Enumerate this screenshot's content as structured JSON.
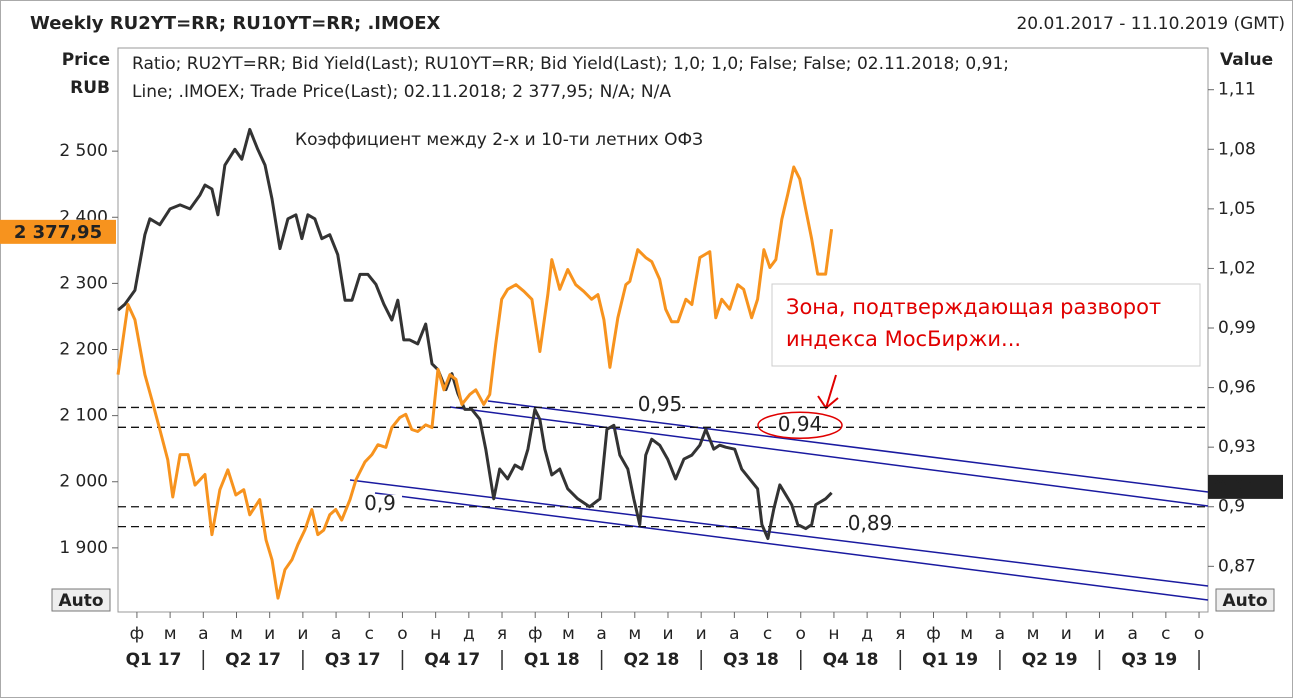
{
  "chart_data": {
    "type": "line",
    "title": "Weekly RU2YT=RR; RU10YT=RR; .IMOEX",
    "date_range": "20.01.2017 - 11.10.2019 (GMT)",
    "y_label": [
      "Price",
      "RUB"
    ],
    "y2_label": "Value",
    "annotation": "Коэффициент между 2-х и 10-ти летних ОФЗ",
    "note": [
      "Зона, подтверждающая разворот",
      "индекса МосБиржи..."
    ],
    "legend_suffix": "N/A; N/A",
    "auto_buttons": [
      "Auto",
      "Auto"
    ],
    "xlim": [
      0.43,
      33.27
    ],
    "xticks": [
      {
        "value": 1,
        "label": "ф"
      },
      {
        "value": 2,
        "label": "м"
      },
      {
        "value": 3,
        "label": "а"
      },
      {
        "value": 4,
        "label": "м"
      },
      {
        "value": 5,
        "label": "и"
      },
      {
        "value": 6,
        "label": "и"
      },
      {
        "value": 7,
        "label": "а"
      },
      {
        "value": 8,
        "label": "с"
      },
      {
        "value": 9,
        "label": "о"
      },
      {
        "value": 10,
        "label": "н"
      },
      {
        "value": 11,
        "label": "д"
      },
      {
        "value": 12,
        "label": "я"
      },
      {
        "value": 13,
        "label": "ф"
      },
      {
        "value": 14,
        "label": "м"
      },
      {
        "value": 15,
        "label": "а"
      },
      {
        "value": 16,
        "label": "м"
      },
      {
        "value": 17,
        "label": "и"
      },
      {
        "value": 18,
        "label": "и"
      },
      {
        "value": 19,
        "label": "а"
      },
      {
        "value": 20,
        "label": "с"
      },
      {
        "value": 21,
        "label": "о"
      },
      {
        "value": 22,
        "label": "н"
      },
      {
        "value": 23,
        "label": "д"
      },
      {
        "value": 24,
        "label": "я"
      },
      {
        "value": 25,
        "label": "ф"
      },
      {
        "value": 26,
        "label": "м"
      },
      {
        "value": 27,
        "label": "а"
      },
      {
        "value": 28,
        "label": "м"
      },
      {
        "value": 29,
        "label": "и"
      },
      {
        "value": 30,
        "label": "и"
      },
      {
        "value": 31,
        "label": "а"
      },
      {
        "value": 32,
        "label": "с"
      },
      {
        "value": 33,
        "label": "о"
      }
    ],
    "quarter_ticks": [
      {
        "value": 1.5,
        "label": "Q1 17"
      },
      {
        "value": 4.5,
        "label": "Q2 17"
      },
      {
        "value": 7.5,
        "label": "Q3 17"
      },
      {
        "value": 10.5,
        "label": "Q4 17"
      },
      {
        "value": 13.5,
        "label": "Q1 18"
      },
      {
        "value": 16.5,
        "label": "Q2 18"
      },
      {
        "value": 19.5,
        "label": "Q3 18"
      },
      {
        "value": 22.5,
        "label": "Q4 18"
      },
      {
        "value": 25.5,
        "label": "Q1 19"
      },
      {
        "value": 28.5,
        "label": "Q2 19"
      },
      {
        "value": 31.5,
        "label": "Q3 19"
      }
    ],
    "ylim": [
      1803,
      2656
    ],
    "yticks": [
      {
        "value": 1900,
        "label": "1 900"
      },
      {
        "value": 2000,
        "label": "2 000"
      },
      {
        "value": 2100,
        "label": "2 100"
      },
      {
        "value": 2200,
        "label": "2 200"
      },
      {
        "value": 2300,
        "label": "2 300"
      },
      {
        "value": 2400,
        "label": "2 400"
      },
      {
        "value": 2500,
        "label": "2 500"
      }
    ],
    "y2lim": [
      0.847,
      1.131
    ],
    "y2ticks": [
      {
        "value": 0.87,
        "label": "0,87"
      },
      {
        "value": 0.9,
        "label": "0,9"
      },
      {
        "value": 0.93,
        "label": "0,93"
      },
      {
        "value": 0.96,
        "label": "0,96"
      },
      {
        "value": 0.99,
        "label": "0,99"
      },
      {
        "value": 1.02,
        "label": "1,02"
      },
      {
        "value": 1.05,
        "label": "1,05"
      },
      {
        "value": 1.08,
        "label": "1,08"
      },
      {
        "value": 1.11,
        "label": "1,11"
      }
    ],
    "reference_lines": [
      {
        "value": 0.95,
        "label": "0,95"
      },
      {
        "value": 0.94,
        "label": "0,94"
      },
      {
        "value": 0.9,
        "label": "0,9"
      },
      {
        "value": 0.89,
        "label": "0,89"
      }
    ],
    "last_labels": [
      {
        "value": 2377.95,
        "label": "2 377,95",
        "axis": "y"
      },
      {
        "value": 0.91,
        "label": "0,91",
        "axis": "y2"
      }
    ],
    "series": [
      {
        "name": "Ratio; RU2YT=RR; Bid Yield(Last); RU10YT=RR; Bid Yield(Last);  1,0; 1,0; False; False; 02.11.2018; 0,91;",
        "color": "#333333",
        "axis": "y2",
        "x": [
          0.43,
          0.64,
          0.94,
          1.24,
          1.39,
          1.69,
          2.0,
          2.3,
          2.6,
          2.9,
          3.05,
          3.26,
          3.44,
          3.65,
          3.95,
          4.16,
          4.4,
          4.64,
          4.86,
          5.07,
          5.31,
          5.55,
          5.79,
          5.97,
          6.15,
          6.36,
          6.57,
          6.81,
          7.05,
          7.27,
          7.48,
          7.72,
          7.96,
          8.2,
          8.44,
          8.68,
          8.86,
          9.04,
          9.22,
          9.46,
          9.7,
          9.89,
          10.07,
          10.31,
          10.49,
          10.67,
          10.88,
          11.09,
          11.33,
          11.51,
          11.75,
          11.93,
          12.17,
          12.39,
          12.6,
          12.78,
          12.99,
          13.14,
          13.29,
          13.5,
          13.74,
          13.98,
          14.28,
          14.64,
          14.95,
          15.16,
          15.37,
          15.55,
          15.79,
          15.97,
          16.15,
          16.33,
          16.51,
          16.75,
          16.99,
          17.23,
          17.48,
          17.72,
          17.96,
          18.14,
          18.38,
          18.56,
          18.74,
          19.01,
          19.22,
          19.46,
          19.7,
          19.83,
          20.01,
          20.19,
          20.37,
          20.55,
          20.73,
          20.91,
          21.15,
          21.33,
          21.45,
          21.75,
          21.93
        ],
        "values": [
          0.999,
          1.002,
          1.009,
          1.037,
          1.045,
          1.042,
          1.05,
          1.052,
          1.05,
          1.057,
          1.062,
          1.06,
          1.047,
          1.072,
          1.08,
          1.075,
          1.09,
          1.08,
          1.072,
          1.055,
          1.03,
          1.045,
          1.047,
          1.035,
          1.047,
          1.045,
          1.035,
          1.037,
          1.027,
          1.004,
          1.004,
          1.017,
          1.017,
          1.012,
          1.002,
          0.994,
          1.004,
          0.984,
          0.984,
          0.982,
          0.992,
          0.972,
          0.969,
          0.959,
          0.967,
          0.957,
          0.949,
          0.949,
          0.944,
          0.929,
          0.904,
          0.919,
          0.914,
          0.921,
          0.919,
          0.929,
          0.949,
          0.944,
          0.929,
          0.916,
          0.919,
          0.909,
          0.904,
          0.9,
          0.904,
          0.939,
          0.941,
          0.926,
          0.919,
          0.904,
          0.891,
          0.926,
          0.934,
          0.931,
          0.924,
          0.914,
          0.924,
          0.926,
          0.931,
          0.939,
          0.929,
          0.931,
          0.93,
          0.929,
          0.919,
          0.914,
          0.909,
          0.891,
          0.884,
          0.899,
          0.911,
          0.906,
          0.901,
          0.891,
          0.889,
          0.891,
          0.901,
          0.904,
          0.907
        ]
      },
      {
        "name": "Line; .IMOEX; Trade Price(Last); 02.11.2018; 2 377,95;",
        "color": "#f7931e",
        "axis": "y",
        "x": [
          0.43,
          0.73,
          0.94,
          1.24,
          1.45,
          1.69,
          1.93,
          2.08,
          2.3,
          2.54,
          2.75,
          3.05,
          3.26,
          3.5,
          3.74,
          3.98,
          4.22,
          4.4,
          4.7,
          4.89,
          5.07,
          5.25,
          5.46,
          5.67,
          5.85,
          6.06,
          6.27,
          6.45,
          6.63,
          6.81,
          6.99,
          7.17,
          7.42,
          7.6,
          7.87,
          8.08,
          8.26,
          8.5,
          8.68,
          8.92,
          9.1,
          9.28,
          9.46,
          9.7,
          9.89,
          10.07,
          10.25,
          10.43,
          10.61,
          10.79,
          11.03,
          11.21,
          11.45,
          11.63,
          11.81,
          11.99,
          12.17,
          12.42,
          12.66,
          12.9,
          13.14,
          13.38,
          13.5,
          13.74,
          13.98,
          14.22,
          14.46,
          14.7,
          14.89,
          15.07,
          15.25,
          15.49,
          15.73,
          15.85,
          16.09,
          16.33,
          16.51,
          16.75,
          16.93,
          17.11,
          17.3,
          17.54,
          17.72,
          17.96,
          18.26,
          18.44,
          18.62,
          18.86,
          19.1,
          19.28,
          19.52,
          19.7,
          19.89,
          20.07,
          20.25,
          20.43,
          20.61,
          20.79,
          20.97,
          21.15,
          21.33,
          21.51,
          21.75,
          21.93
        ],
        "values": [
          2162,
          2268,
          2245,
          2162,
          2124,
          2079,
          2033,
          1977,
          2041,
          2041,
          1995,
          2011,
          1920,
          1988,
          2018,
          1980,
          1988,
          1950,
          1973,
          1912,
          1882,
          1824,
          1867,
          1882,
          1905,
          1927,
          1958,
          1920,
          1927,
          1950,
          1958,
          1942,
          1973,
          2003,
          2030,
          2041,
          2056,
          2052,
          2082,
          2097,
          2102,
          2079,
          2076,
          2086,
          2082,
          2170,
          2139,
          2162,
          2155,
          2117,
          2132,
          2139,
          2117,
          2132,
          2208,
          2276,
          2291,
          2298,
          2288,
          2276,
          2197,
          2283,
          2336,
          2291,
          2321,
          2298,
          2288,
          2276,
          2283,
          2245,
          2173,
          2248,
          2298,
          2303,
          2351,
          2339,
          2333,
          2306,
          2261,
          2242,
          2242,
          2276,
          2268,
          2339,
          2348,
          2248,
          2276,
          2261,
          2298,
          2291,
          2248,
          2276,
          2351,
          2324,
          2336,
          2397,
          2435,
          2476,
          2458,
          2412,
          2367,
          2314,
          2314,
          2382
        ]
      }
    ]
  }
}
